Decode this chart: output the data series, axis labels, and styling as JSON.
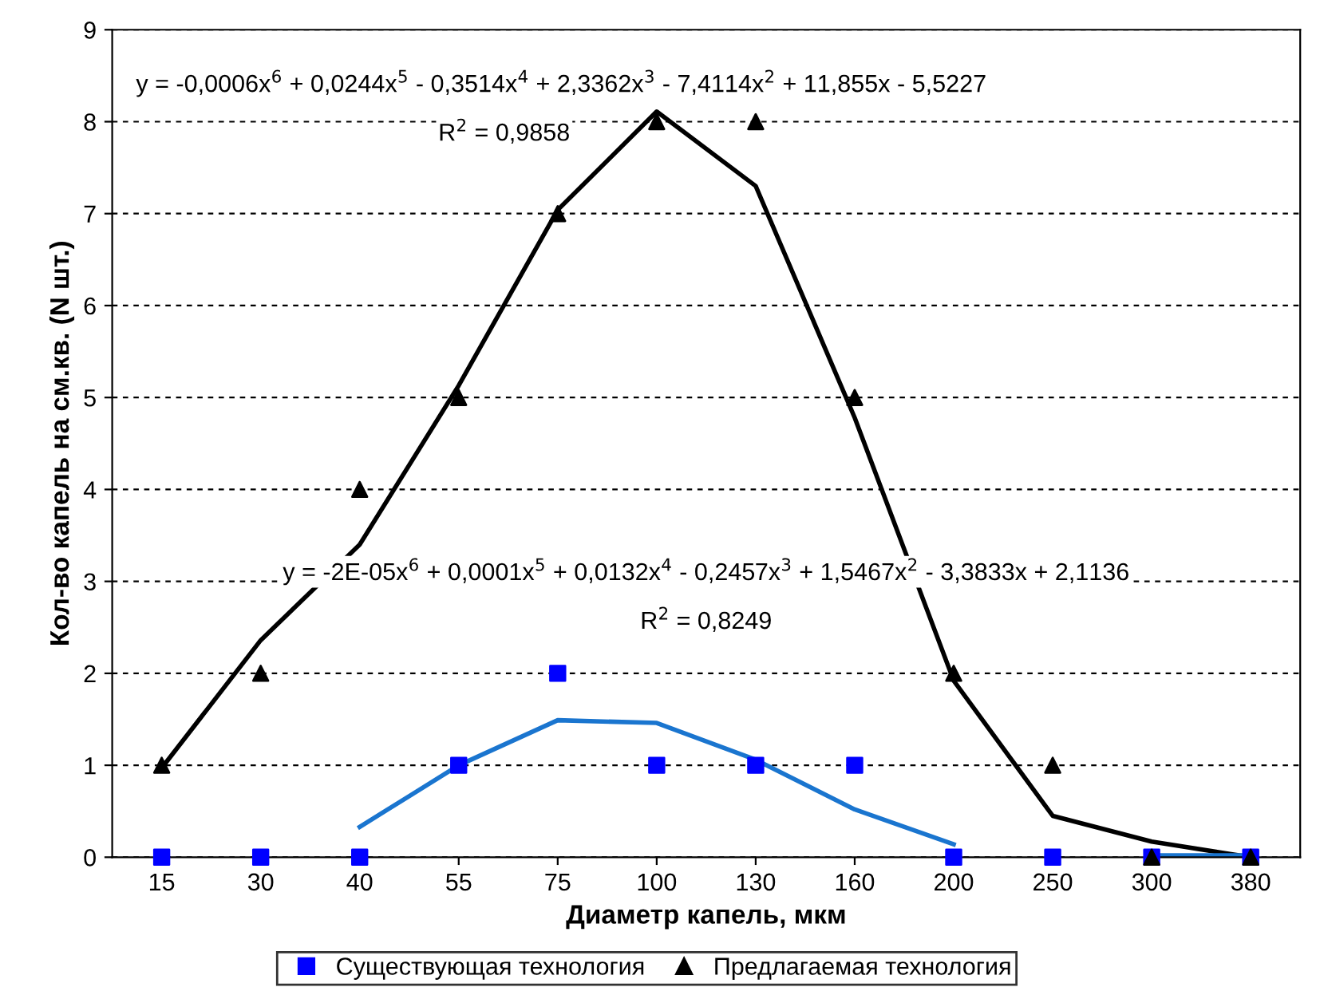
{
  "chart_data": {
    "type": "scatter",
    "xlabel": "Диаметр капель, мкм",
    "ylabel": "Кол-во капель на см.кв. (N шт.)",
    "categories": [
      "15",
      "30",
      "40",
      "55",
      "75",
      "100",
      "130",
      "160",
      "200",
      "250",
      "300",
      "380"
    ],
    "ylim": [
      0,
      9
    ],
    "yticks": [
      0,
      1,
      2,
      3,
      4,
      5,
      6,
      7,
      8,
      9
    ],
    "grid": "y",
    "legend": "bottom",
    "series": [
      {
        "type": "line",
        "color": "#000000",
        "marker": "none",
        "line_style": "solid",
        "values": [
          0.97,
          2.36,
          3.4,
          5.13,
          7.04,
          8.11,
          7.3,
          4.78,
          1.92,
          0.45,
          0.17,
          0
        ]
      },
      {
        "type": "line",
        "color": "#1a75cf",
        "marker": "none",
        "line_style": "solid",
        "values": [
          null,
          null,
          0.33,
          1.0,
          1.49,
          1.46,
          1.06,
          0.52,
          0.14,
          null,
          0.02,
          0.02
        ]
      },
      {
        "name": "Существующая технология",
        "color": "#0000ff",
        "marker": "square",
        "values": [
          0,
          0,
          0,
          1,
          2,
          1,
          1,
          1,
          0,
          0,
          0,
          0
        ]
      },
      {
        "name": "Предлагаемая технология",
        "color": "#000000",
        "marker": "triangle",
        "values": [
          1,
          2,
          4,
          5,
          7,
          8,
          8,
          5,
          2,
          1,
          0,
          0
        ]
      }
    ],
    "annotations": [
      "y = -0,0006x$^{6}$ + 0,0244x$^{5}$ - 0,3514x$^{4}$ + 2,3362x$^{3}$ - 7,4114x$^{2}$ + 11,855x - 5,5227",
      "R$^{2}$ = 0,9858",
      "y = -2E-05x$^{6}$ + 0,0001x$^{5}$ + 0,0132x$^{4}$ - 0,2457x$^{3}$ + 1,5467x$^{2}$ - 3,3833x + 2,1136",
      "R$^{2}$ = 0,8249"
    ]
  }
}
